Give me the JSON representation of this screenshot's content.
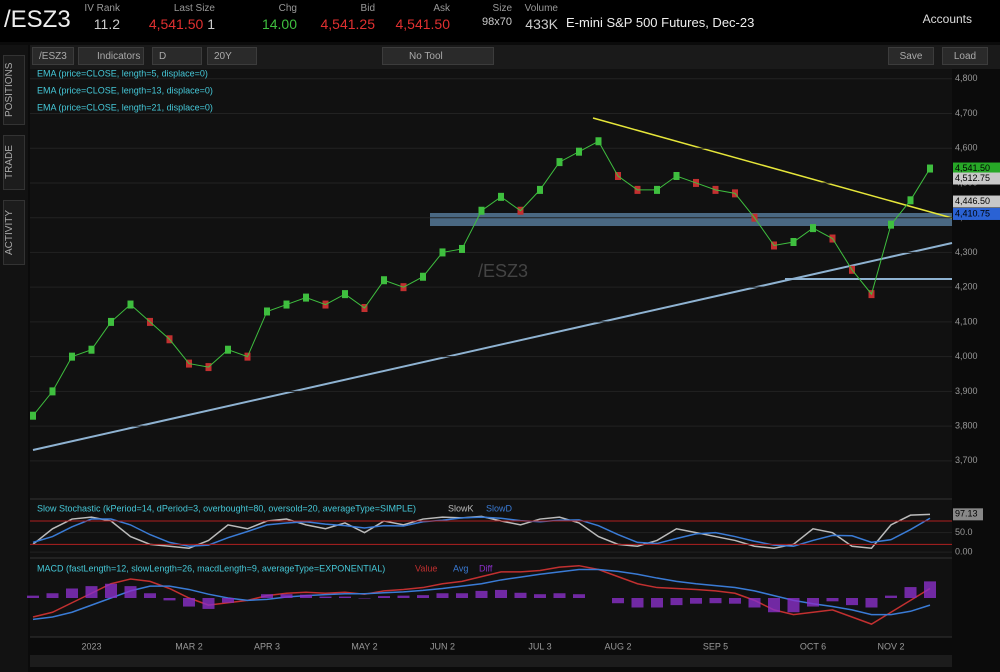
{
  "header": {
    "symbol": "/ESZ3",
    "quote": [
      {
        "label": "IV Rank",
        "value": "11.2"
      },
      {
        "label": "Last Size",
        "value": "4,541.50",
        "size": "1"
      },
      {
        "label": "Chg",
        "value": "14.00"
      },
      {
        "label": "Bid",
        "value": "4,541.25"
      },
      {
        "label": "Ask",
        "value": "4,541.50"
      },
      {
        "label": "Size",
        "value": "98x70"
      },
      {
        "label": "Volume",
        "value": "433K"
      }
    ],
    "description": "E-mini S&P 500 Futures, Dec-23",
    "accounts": "Accounts"
  },
  "side_tabs": [
    "POSITIONS",
    "TRADE",
    "ACTIVITY"
  ],
  "toolbar": {
    "symbol": "/ESZ3",
    "indicators": "Indicators",
    "aggregation": "D",
    "period": "20Y",
    "tool": "No Tool",
    "save": "Save",
    "load": "Load"
  },
  "chart_data": [
    {
      "type": "line",
      "watermark": "/ESZ3",
      "studies": [
        "EMA (price=CLOSE, length=5, displace=0)",
        "EMA (price=CLOSE, length=13, displace=0)",
        "EMA (price=CLOSE, length=21, displace=0)"
      ],
      "categories": [
        null,
        null,
        null,
        "2023",
        null,
        null,
        null,
        null,
        "MAR 2",
        null,
        null,
        null,
        "APR 3",
        null,
        null,
        null,
        null,
        "MAY 2",
        null,
        null,
        null,
        "JUN 2",
        null,
        null,
        null,
        null,
        "JUL 3",
        null,
        null,
        null,
        "AUG 2",
        null,
        null,
        null,
        null,
        "SEP 5",
        null,
        null,
        null,
        null,
        "OCT 6",
        null,
        null,
        null,
        "NOV 2",
        null,
        null
      ],
      "values": [
        3830,
        3900,
        4000,
        4020,
        4100,
        4150,
        4100,
        4050,
        3980,
        3970,
        4020,
        4000,
        4130,
        4150,
        4170,
        4150,
        4180,
        4140,
        4220,
        4200,
        4230,
        4300,
        4310,
        4420,
        4460,
        4420,
        4480,
        4560,
        4590,
        4620,
        4520,
        4480,
        4480,
        4520,
        4500,
        4480,
        4470,
        4400,
        4320,
        4330,
        4370,
        4340,
        4250,
        4180,
        4380,
        4450,
        4541.5
      ],
      "color": "#3fbf3f",
      "ylim": [
        3596,
        4828
      ],
      "yticks": [
        {
          "value": 3700,
          "label": "3,700"
        },
        {
          "value": 3800,
          "label": "3,800"
        },
        {
          "value": 3900,
          "label": "3,900"
        },
        {
          "value": 4000,
          "label": "4,000"
        },
        {
          "value": 4100,
          "label": "4,100"
        },
        {
          "value": 4200,
          "label": "4,200"
        },
        {
          "value": 4300,
          "label": "4,300"
        },
        {
          "value": 4400,
          "label": "4,400"
        },
        {
          "value": 4500,
          "label": "4,500"
        },
        {
          "value": 4600,
          "label": "4,600"
        },
        {
          "value": 4700,
          "label": "4,700"
        },
        {
          "value": 4800,
          "label": "4,800"
        }
      ],
      "price_labels": [
        {
          "value": 4541.5,
          "label": "4,541.50",
          "color": "#27a827"
        },
        {
          "value": 4512.75,
          "label": "4,512.75",
          "color": "#c8c8c8"
        },
        {
          "value": 4446.5,
          "label": "4,446.50",
          "color": "#c8c8c8"
        },
        {
          "value": 4410.75,
          "label": "4,410.75",
          "color": "#2a62d4"
        }
      ]
    },
    {
      "type": "line",
      "title": "Slow Stochastic (kPeriod=14, dPeriod=3, overbought=80, oversold=20, averageType=SIMPLE)",
      "overbought": 80,
      "oversold": 20,
      "ylim": [
        -10,
        134
      ],
      "yticks": [
        {
          "value": 50,
          "label": "50.0"
        },
        {
          "value": 0,
          "label": "0.00"
        }
      ],
      "last_label": {
        "value": 97.13,
        "label": "97.13"
      },
      "series": [
        {
          "name": "SlowK",
          "color": "#bbbbbb",
          "values": [
            20,
            60,
            85,
            90,
            80,
            40,
            20,
            15,
            10,
            30,
            70,
            60,
            80,
            85,
            70,
            60,
            75,
            50,
            80,
            70,
            85,
            90,
            88,
            92,
            80,
            70,
            85,
            90,
            75,
            40,
            20,
            15,
            30,
            60,
            50,
            40,
            30,
            15,
            10,
            20,
            60,
            50,
            15,
            10,
            70,
            95,
            97.13
          ]
        },
        {
          "name": "SlowD",
          "color": "#3a7bd5",
          "values": [
            25,
            40,
            65,
            85,
            85,
            70,
            45,
            25,
            15,
            18,
            37,
            53,
            70,
            75,
            78,
            72,
            68,
            62,
            68,
            67,
            78,
            82,
            88,
            90,
            87,
            81,
            78,
            82,
            83,
            68,
            45,
            25,
            22,
            35,
            47,
            50,
            40,
            28,
            18,
            15,
            30,
            43,
            42,
            25,
            32,
            58,
            87
          ]
        }
      ]
    },
    {
      "type": "line",
      "title": "MACD (fastLength=12, slowLength=26, macdLength=9, averageType=EXPONENTIAL)",
      "ylim": [
        -80,
        80
      ],
      "series": [
        {
          "name": "Value",
          "color": "#c23030",
          "values": [
            -40,
            -30,
            -10,
            10,
            30,
            40,
            35,
            20,
            0,
            -15,
            -10,
            -5,
            5,
            10,
            12,
            10,
            12,
            8,
            15,
            18,
            22,
            30,
            35,
            45,
            55,
            55,
            58,
            65,
            68,
            60,
            45,
            30,
            22,
            20,
            18,
            15,
            10,
            -5,
            -25,
            -35,
            -30,
            -25,
            -40,
            -55,
            -30,
            -5,
            20
          ]
        },
        {
          "name": "Avg",
          "color": "#3a7bd5",
          "values": [
            -45,
            -40,
            -30,
            -15,
            0,
            15,
            25,
            25,
            18,
            8,
            0,
            -5,
            -3,
            2,
            5,
            7,
            9,
            9,
            11,
            13,
            16,
            20,
            25,
            30,
            38,
            44,
            50,
            55,
            60,
            60,
            56,
            50,
            42,
            35,
            30,
            26,
            22,
            15,
            5,
            -5,
            -12,
            -18,
            -25,
            -35,
            -35,
            -28,
            -15
          ]
        },
        {
          "name": "Diff",
          "color": "#8a2fc8",
          "type": "bar",
          "values": [
            5,
            10,
            20,
            25,
            30,
            25,
            10,
            -5,
            -18,
            -23,
            -10,
            0,
            8,
            8,
            7,
            3,
            3,
            -1,
            4,
            5,
            6,
            10,
            10,
            15,
            17,
            11,
            8,
            10,
            8,
            0,
            -11,
            -20,
            -20,
            -15,
            -12,
            -11,
            -12,
            -20,
            -30,
            -30,
            -18,
            -7,
            -15,
            -20,
            5,
            23,
            35
          ]
        }
      ]
    }
  ]
}
